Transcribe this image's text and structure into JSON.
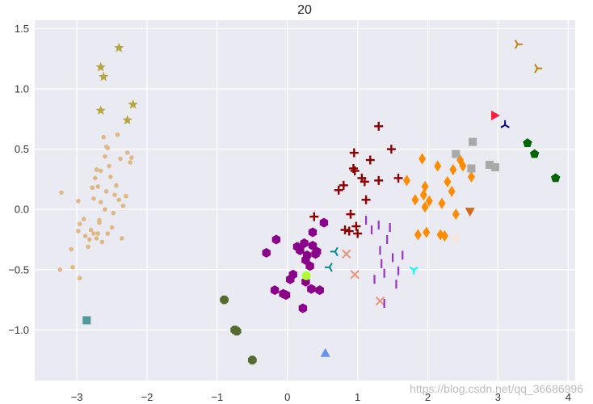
{
  "chart_data": {
    "type": "scatter",
    "title": "20",
    "xlabel": "",
    "ylabel": "",
    "xlim": [
      -3.6,
      4.1
    ],
    "ylim": [
      -1.42,
      1.57
    ],
    "xticks": [
      -3,
      -2,
      -1,
      0,
      1,
      2,
      3,
      4
    ],
    "yticks": [
      -1.0,
      -0.5,
      0.0,
      0.5,
      1.0,
      1.5
    ],
    "xtick_labels": [
      "−3",
      "−2",
      "−1",
      "0",
      "1",
      "2",
      "3",
      "4"
    ],
    "ytick_labels": [
      "−1.0",
      "−0.5",
      "0.0",
      "0.5",
      "1.0",
      "1.5"
    ],
    "grid": true,
    "background": "#eaeaf2",
    "series": [
      {
        "marker": "dot",
        "color": "#deb887",
        "points": [
          [
            -3.22,
            0.14
          ],
          [
            -3.24,
            -0.5
          ],
          [
            -3.08,
            -0.33
          ],
          [
            -3.06,
            -0.48
          ],
          [
            -2.96,
            -0.57
          ],
          [
            -2.98,
            -0.18
          ],
          [
            -2.96,
            -0.12
          ],
          [
            -2.98,
            0.07
          ],
          [
            -2.9,
            -0.08
          ],
          [
            -2.88,
            -0.22
          ],
          [
            -2.84,
            -0.31
          ],
          [
            -2.82,
            -0.25
          ],
          [
            -2.8,
            -0.17
          ],
          [
            -2.78,
            0.18
          ],
          [
            -2.76,
            0.09
          ],
          [
            -2.74,
            0.26
          ],
          [
            -2.72,
            0.33
          ],
          [
            -2.7,
            -0.2
          ],
          [
            -2.68,
            -0.11
          ],
          [
            -2.66,
            0.32
          ],
          [
            -2.62,
            0.6
          ],
          [
            -2.6,
            0.44
          ],
          [
            -2.58,
            0.52
          ],
          [
            -2.56,
            0.51
          ],
          [
            -2.54,
            0.36
          ],
          [
            -2.52,
            0.27
          ],
          [
            -2.5,
            -0.15
          ],
          [
            -2.48,
            -0.03
          ],
          [
            -2.46,
            0.12
          ],
          [
            -2.44,
            0.2
          ],
          [
            -2.42,
            0.62
          ],
          [
            -2.4,
            0.08
          ],
          [
            -2.38,
            0.42
          ],
          [
            -2.36,
            -0.24
          ],
          [
            -2.34,
            0.03
          ],
          [
            -2.3,
            0.11
          ],
          [
            -2.28,
            0.47
          ],
          [
            -2.24,
            0.39
          ],
          [
            -2.22,
            0.43
          ],
          [
            -2.68,
            -0.09
          ],
          [
            -2.64,
            -0.27
          ],
          [
            -2.6,
            0.0
          ],
          [
            -2.58,
            0.15
          ],
          [
            -2.56,
            -0.2
          ],
          [
            -2.66,
            0.06
          ],
          [
            -2.72,
            -0.24
          ],
          [
            -2.76,
            -0.2
          ],
          [
            -2.7,
            0.19
          ]
        ]
      },
      {
        "marker": "star",
        "color": "#b5a642",
        "points": [
          [
            -2.4,
            1.34
          ],
          [
            -2.66,
            1.18
          ],
          [
            -2.62,
            1.1
          ],
          [
            -2.66,
            0.82
          ],
          [
            -2.2,
            0.87
          ],
          [
            -2.28,
            0.74
          ]
        ]
      },
      {
        "marker": "square",
        "color": "#4f9a9a",
        "points": [
          [
            -2.86,
            -0.92
          ]
        ]
      },
      {
        "marker": "octagon",
        "color": "#556b2f",
        "points": [
          [
            -0.9,
            -0.75
          ],
          [
            -0.75,
            -1.0
          ],
          [
            -0.72,
            -1.01
          ],
          [
            -0.5,
            -1.25
          ]
        ]
      },
      {
        "marker": "hexagon",
        "color": "#8b008b",
        "points": [
          [
            -0.3,
            -0.36
          ],
          [
            -0.16,
            -0.25
          ],
          [
            -0.18,
            -0.67
          ],
          [
            -0.06,
            -0.7
          ],
          [
            -0.02,
            -0.71
          ],
          [
            0.04,
            -0.58
          ],
          [
            0.08,
            -0.54
          ],
          [
            0.14,
            -0.31
          ],
          [
            0.18,
            -0.34
          ],
          [
            0.22,
            -0.82
          ],
          [
            0.24,
            -0.28
          ],
          [
            0.26,
            -0.6
          ],
          [
            0.28,
            -0.38
          ],
          [
            0.32,
            -0.47
          ],
          [
            0.36,
            -0.19
          ],
          [
            0.4,
            -0.37
          ],
          [
            0.42,
            -0.35
          ],
          [
            0.46,
            -0.67
          ],
          [
            0.52,
            -0.11
          ],
          [
            0.26,
            -0.42
          ],
          [
            0.36,
            -0.3
          ],
          [
            0.34,
            -0.66
          ]
        ]
      },
      {
        "marker": "circle",
        "color": "#adff2f",
        "points": [
          [
            0.27,
            -0.55
          ]
        ]
      },
      {
        "marker": "tri_left",
        "color": "#008b8b",
        "points": [
          [
            0.68,
            -0.35
          ],
          [
            0.6,
            -0.48
          ]
        ]
      },
      {
        "marker": "x",
        "color": "#e9967a",
        "points": [
          [
            0.84,
            -0.37
          ],
          [
            0.96,
            -0.54
          ],
          [
            1.32,
            -0.76
          ]
        ]
      },
      {
        "marker": "plus",
        "color": "#8b0000",
        "points": [
          [
            0.38,
            -0.06
          ],
          [
            0.73,
            0.16
          ],
          [
            0.8,
            0.2
          ],
          [
            0.82,
            -0.17
          ],
          [
            0.9,
            -0.04
          ],
          [
            0.94,
            0.34
          ],
          [
            0.95,
            0.47
          ],
          [
            0.96,
            0.32
          ],
          [
            0.98,
            -0.14
          ],
          [
            1.0,
            -0.2
          ],
          [
            1.06,
            0.26
          ],
          [
            1.1,
            0.23
          ],
          [
            1.12,
            0.08
          ],
          [
            1.18,
            0.41
          ],
          [
            1.3,
            0.24
          ],
          [
            1.3,
            0.69
          ],
          [
            1.48,
            0.5
          ],
          [
            1.58,
            0.26
          ],
          [
            0.88,
            -0.18
          ]
        ]
      },
      {
        "marker": "vline",
        "color": "#9932cc",
        "points": [
          [
            1.12,
            -0.09
          ],
          [
            1.2,
            -0.17
          ],
          [
            1.24,
            -0.58
          ],
          [
            1.3,
            -0.13
          ],
          [
            1.32,
            -0.34
          ],
          [
            1.34,
            -0.45
          ],
          [
            1.38,
            -0.53
          ],
          [
            1.42,
            -0.25
          ],
          [
            1.46,
            -0.15
          ],
          [
            1.5,
            -0.4
          ],
          [
            1.55,
            -0.62
          ],
          [
            1.58,
            -0.51
          ],
          [
            1.64,
            -0.38
          ],
          [
            1.38,
            -0.78
          ]
        ]
      },
      {
        "marker": "tri_down",
        "color": "#00ffff",
        "points": [
          [
            1.8,
            -0.5
          ]
        ]
      },
      {
        "marker": "diamond",
        "color": "#ff8c00",
        "points": [
          [
            1.7,
            0.24
          ],
          [
            1.82,
            0.08
          ],
          [
            1.86,
            -0.21
          ],
          [
            1.92,
            0.42
          ],
          [
            1.94,
            0.12
          ],
          [
            1.96,
            0.19
          ],
          [
            1.96,
            0.02
          ],
          [
            1.98,
            -0.19
          ],
          [
            2.02,
            0.07
          ],
          [
            2.14,
            0.36
          ],
          [
            2.18,
            -0.21
          ],
          [
            2.2,
            0.05
          ],
          [
            2.24,
            -0.22
          ],
          [
            2.28,
            0.23
          ],
          [
            2.34,
            0.15
          ],
          [
            2.36,
            0.33
          ],
          [
            2.4,
            -0.04
          ],
          [
            2.46,
            0.41
          ],
          [
            2.5,
            0.36
          ],
          [
            2.62,
            0.27
          ]
        ]
      },
      {
        "marker": "tri_left",
        "color": "#ffe4c4",
        "points": [
          [
            2.4,
            -0.24
          ]
        ]
      },
      {
        "marker": "triangle_down",
        "color": "#d2691e",
        "points": [
          [
            2.6,
            -0.02
          ]
        ]
      },
      {
        "marker": "square",
        "color": "#a9a9a9",
        "points": [
          [
            2.4,
            0.46
          ],
          [
            2.62,
            0.34
          ],
          [
            2.64,
            0.56
          ],
          [
            2.88,
            0.37
          ],
          [
            2.96,
            0.35
          ]
        ]
      },
      {
        "marker": "triangle_right",
        "color": "#ff1a40",
        "points": [
          [
            2.96,
            0.78
          ]
        ]
      },
      {
        "marker": "tri_up",
        "color": "#000080",
        "points": [
          [
            3.1,
            0.7
          ]
        ]
      },
      {
        "marker": "pentagon",
        "color": "#006400",
        "points": [
          [
            3.42,
            0.55
          ],
          [
            3.52,
            0.46
          ],
          [
            3.82,
            0.26
          ]
        ]
      },
      {
        "marker": "tri_right",
        "color": "#b8860b",
        "points": [
          [
            3.28,
            1.37
          ],
          [
            3.56,
            1.17
          ]
        ]
      },
      {
        "marker": "triangle_up",
        "color": "#6495ed",
        "points": [
          [
            0.54,
            -1.19
          ]
        ]
      }
    ]
  },
  "watermark": "https://blog.csdn.net/qq_36686996"
}
